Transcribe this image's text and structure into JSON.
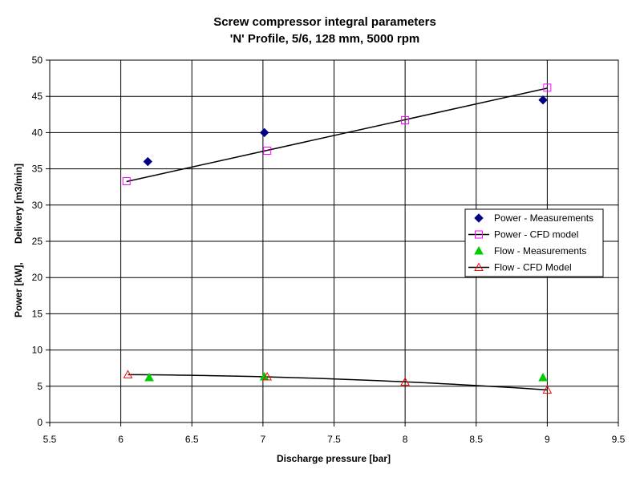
{
  "chart_data": {
    "type": "scatter",
    "title": "Screw compressor integral parameters",
    "subtitle": "'N' Profile, 5/6, 128 mm, 5000 rpm",
    "xlabel": "Discharge pressure [bar]",
    "ylabel": "Power [kW],       Delivery [m3/min]",
    "xlim": [
      5.5,
      9.5
    ],
    "ylim": [
      0,
      50
    ],
    "x_ticks": [
      "5.5",
      "6",
      "6.5",
      "7",
      "7.5",
      "8",
      "8.5",
      "9",
      "9.5"
    ],
    "y_ticks": [
      "0",
      "5",
      "10",
      "15",
      "20",
      "25",
      "30",
      "35",
      "40",
      "45",
      "50"
    ],
    "grid": "vertical and horizontal",
    "legend_position": "right",
    "series": [
      {
        "name": "Power - Measurements",
        "marker": "diamond",
        "line": false,
        "color": "#000080",
        "x": [
          6.19,
          7.01,
          8.97
        ],
        "y": [
          36.0,
          40.0,
          44.5
        ]
      },
      {
        "name": "Power - CFD model",
        "marker": "square-open",
        "line": true,
        "color": "#FF00FF",
        "x": [
          6.04,
          7.03,
          8.0,
          9.0
        ],
        "y": [
          33.3,
          37.5,
          41.7,
          46.2
        ]
      },
      {
        "name": "Flow - Measurements",
        "marker": "triangle",
        "line": false,
        "color": "#00CC00",
        "x": [
          6.2,
          7.01,
          8.97
        ],
        "y": [
          6.2,
          6.3,
          6.2
        ]
      },
      {
        "name": "Flow - CFD Model",
        "marker": "triangle-open",
        "line": true,
        "color": "#FF0000",
        "x": [
          6.05,
          7.03,
          8.0,
          9.0
        ],
        "y": [
          6.6,
          6.3,
          5.6,
          4.5
        ]
      }
    ]
  }
}
